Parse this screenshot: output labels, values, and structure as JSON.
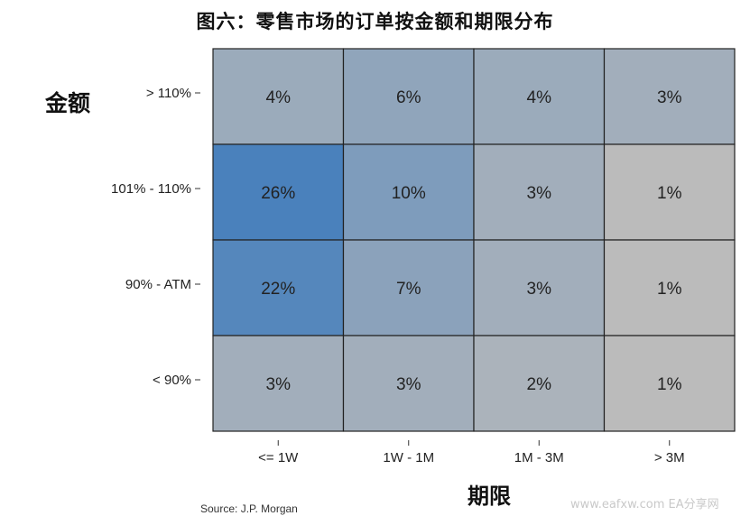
{
  "chart_data": {
    "type": "heatmap",
    "title": "图六：零售市场的订单按金额和期限分布",
    "xlabel": "期限",
    "ylabel": "金额",
    "x_categories": [
      "<= 1W",
      "1W - 1M",
      "1M - 3M",
      "> 3M"
    ],
    "y_categories": [
      "> 110%",
      "101% - 110%",
      "90% - ATM",
      "< 90%"
    ],
    "values": [
      [
        4,
        6,
        4,
        3
      ],
      [
        26,
        10,
        3,
        1
      ],
      [
        22,
        7,
        3,
        1
      ],
      [
        3,
        3,
        2,
        1
      ]
    ],
    "value_labels": [
      [
        "4%",
        "6%",
        "4%",
        "3%"
      ],
      [
        "26%",
        "10%",
        "3%",
        "1%"
      ],
      [
        "22%",
        "7%",
        "3%",
        "1%"
      ],
      [
        "3%",
        "3%",
        "2%",
        "1%"
      ]
    ],
    "color_low": "#bbbbbb",
    "color_high": "#4a81bc",
    "source": "Source: J.P. Morgan"
  },
  "watermark": "www.eafxw.com  EA分享网"
}
